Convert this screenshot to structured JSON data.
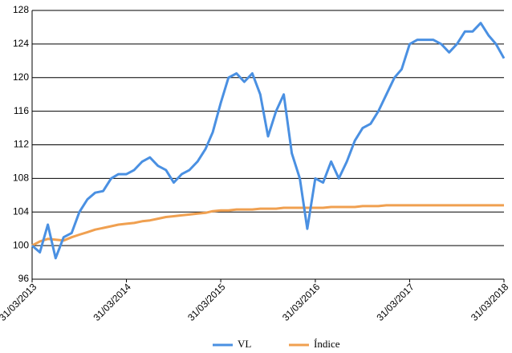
{
  "chart_data": {
    "type": "line",
    "x": [
      "31/03/2013",
      "30/04/2013",
      "31/05/2013",
      "30/06/2013",
      "31/07/2013",
      "31/08/2013",
      "30/09/2013",
      "31/10/2013",
      "30/11/2013",
      "31/12/2013",
      "31/01/2014",
      "28/02/2014",
      "31/03/2014",
      "30/04/2014",
      "31/05/2014",
      "30/06/2014",
      "31/07/2014",
      "31/08/2014",
      "30/09/2014",
      "31/10/2014",
      "30/11/2014",
      "31/12/2014",
      "31/01/2015",
      "28/02/2015",
      "31/03/2015",
      "30/04/2015",
      "31/05/2015",
      "30/06/2015",
      "31/07/2015",
      "31/08/2015",
      "30/09/2015",
      "31/10/2015",
      "30/11/2015",
      "31/12/2015",
      "31/01/2016",
      "29/02/2016",
      "31/03/2016",
      "30/04/2016",
      "31/05/2016",
      "30/06/2016",
      "31/07/2016",
      "31/08/2016",
      "30/09/2016",
      "31/10/2016",
      "30/11/2016",
      "31/12/2016",
      "31/01/2017",
      "28/02/2017",
      "31/03/2017",
      "30/04/2017",
      "31/05/2017",
      "30/06/2017",
      "31/07/2017",
      "31/08/2017",
      "30/09/2017",
      "31/10/2017",
      "30/11/2017",
      "31/12/2017",
      "31/01/2018",
      "28/02/2018",
      "31/03/2018"
    ],
    "series": [
      {
        "name": "VL",
        "color": "#4a90e2",
        "values": [
          100,
          99.2,
          102.5,
          98.5,
          101,
          101.5,
          104,
          105.5,
          106.3,
          106.5,
          108,
          108.5,
          108.5,
          109,
          110,
          110.5,
          109.5,
          109,
          107.5,
          108.5,
          109,
          110,
          111.5,
          113.5,
          117,
          120,
          120.5,
          119.5,
          120.5,
          118,
          113,
          116,
          118,
          111,
          108,
          102,
          108,
          107.5,
          110,
          108,
          110,
          112.5,
          114,
          114.5,
          116,
          118,
          120,
          121,
          124,
          124.5,
          124.5,
          124.5,
          124,
          123,
          124,
          125.5,
          125.5,
          126.5,
          125,
          124,
          122.3
        ]
      },
      {
        "name": "Índice",
        "color": "#f0a050",
        "values": [
          100,
          100.5,
          100.8,
          100.7,
          100.6,
          101,
          101.3,
          101.6,
          101.9,
          102.1,
          102.3,
          102.5,
          102.6,
          102.7,
          102.9,
          103,
          103.2,
          103.4,
          103.5,
          103.6,
          103.7,
          103.8,
          103.9,
          104.1,
          104.2,
          104.2,
          104.3,
          104.3,
          104.3,
          104.4,
          104.4,
          104.4,
          104.5,
          104.5,
          104.5,
          104.5,
          104.5,
          104.5,
          104.6,
          104.6,
          104.6,
          104.6,
          104.7,
          104.7,
          104.7,
          104.8,
          104.8,
          104.8,
          104.8,
          104.8,
          104.8,
          104.8,
          104.8,
          104.8,
          104.8,
          104.8,
          104.8,
          104.8,
          104.8,
          104.8,
          104.8
        ]
      }
    ],
    "xlim": [
      "31/03/2013",
      "31/03/2018"
    ],
    "xticks": [
      "31/03/2013",
      "31/03/2014",
      "31/03/2015",
      "31/03/2016",
      "31/03/2017",
      "31/03/2018"
    ],
    "ylim": [
      96,
      128
    ],
    "yticks": [
      96,
      100,
      104,
      108,
      112,
      116,
      120,
      124,
      128
    ],
    "grid": true
  }
}
